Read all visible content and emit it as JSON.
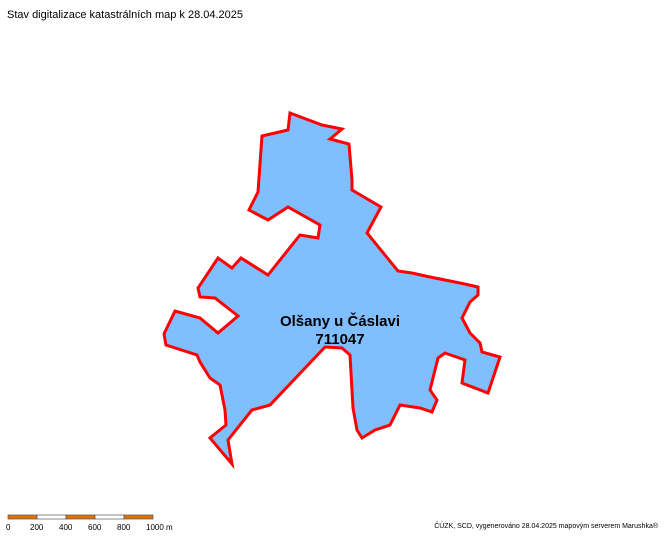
{
  "header": {
    "title": "Stav digitalizace katastrálních map k 28.04.2025"
  },
  "parcel": {
    "name": "Olšany u Čáslavi",
    "code": "711047"
  },
  "scale": {
    "labels": [
      "0",
      "200",
      "400",
      "600",
      "800",
      "1000 m"
    ]
  },
  "footer": {
    "attribution": "ČÚZK, SCD, vygenerováno 28.04.2025 mapovým serverem Marushka®"
  }
}
